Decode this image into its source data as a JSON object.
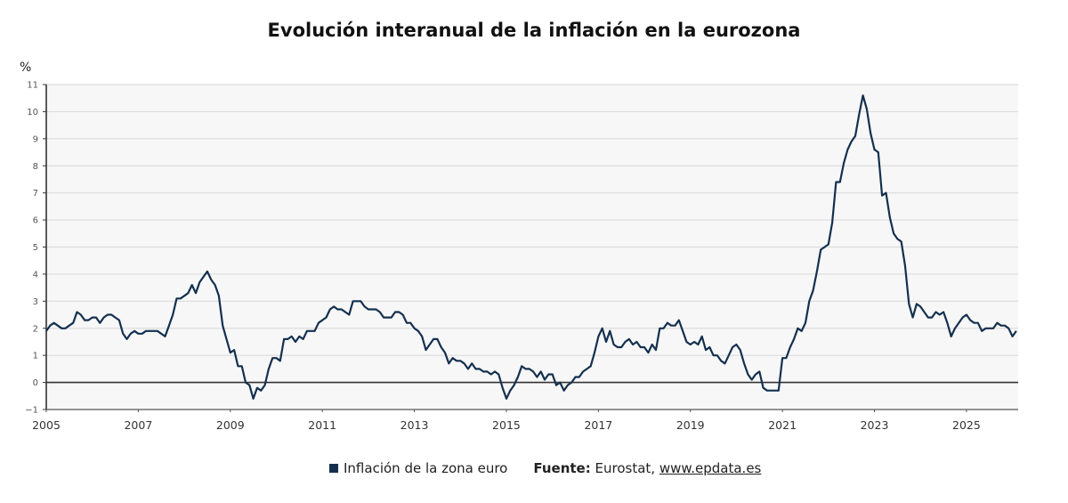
{
  "chart_data": {
    "type": "line",
    "title": "Evolución interanual de la inflación en la eurozona",
    "ylabel": "%",
    "xlabel": "",
    "ylim": [
      -1,
      11
    ],
    "yticks": [
      -1,
      0,
      1,
      2,
      3,
      4,
      5,
      6,
      7,
      8,
      9,
      10,
      11
    ],
    "xticks": [
      "2005",
      "2007",
      "2009",
      "2011",
      "2013",
      "2015",
      "2017",
      "2019",
      "2021",
      "2023",
      "2025"
    ],
    "x_start": "2005-01",
    "frequency": "monthly",
    "grid": true,
    "legend_position": "bottom-center",
    "series": [
      {
        "name": "Inflación de la zona euro",
        "color": "#14304f",
        "values": [
          1.9,
          2.1,
          2.2,
          2.1,
          2.0,
          2.0,
          2.1,
          2.2,
          2.6,
          2.5,
          2.3,
          2.3,
          2.4,
          2.4,
          2.2,
          2.4,
          2.5,
          2.5,
          2.4,
          2.3,
          1.8,
          1.6,
          1.8,
          1.9,
          1.8,
          1.8,
          1.9,
          1.9,
          1.9,
          1.9,
          1.8,
          1.7,
          2.1,
          2.5,
          3.1,
          3.1,
          3.2,
          3.3,
          3.6,
          3.3,
          3.7,
          3.9,
          4.1,
          3.8,
          3.6,
          3.2,
          2.1,
          1.6,
          1.1,
          1.2,
          0.6,
          0.6,
          0.0,
          -0.1,
          -0.6,
          -0.2,
          -0.3,
          -0.1,
          0.5,
          0.9,
          0.9,
          0.8,
          1.6,
          1.6,
          1.7,
          1.5,
          1.7,
          1.6,
          1.9,
          1.9,
          1.9,
          2.2,
          2.3,
          2.4,
          2.7,
          2.8,
          2.7,
          2.7,
          2.6,
          2.5,
          3.0,
          3.0,
          3.0,
          2.8,
          2.7,
          2.7,
          2.7,
          2.6,
          2.4,
          2.4,
          2.4,
          2.6,
          2.6,
          2.5,
          2.2,
          2.2,
          2.0,
          1.9,
          1.7,
          1.2,
          1.4,
          1.6,
          1.6,
          1.3,
          1.1,
          0.7,
          0.9,
          0.8,
          0.8,
          0.7,
          0.5,
          0.7,
          0.5,
          0.5,
          0.4,
          0.4,
          0.3,
          0.4,
          0.3,
          -0.2,
          -0.6,
          -0.3,
          -0.1,
          0.2,
          0.6,
          0.5,
          0.5,
          0.4,
          0.2,
          0.4,
          0.1,
          0.3,
          0.3,
          -0.1,
          0.0,
          -0.3,
          -0.1,
          0.0,
          0.2,
          0.2,
          0.4,
          0.5,
          0.6,
          1.1,
          1.7,
          2.0,
          1.5,
          1.9,
          1.4,
          1.3,
          1.3,
          1.5,
          1.6,
          1.4,
          1.5,
          1.3,
          1.3,
          1.1,
          1.4,
          1.2,
          2.0,
          2.0,
          2.2,
          2.1,
          2.1,
          2.3,
          1.9,
          1.5,
          1.4,
          1.5,
          1.4,
          1.7,
          1.2,
          1.3,
          1.0,
          1.0,
          0.8,
          0.7,
          1.0,
          1.3,
          1.4,
          1.2,
          0.7,
          0.3,
          0.1,
          0.3,
          0.4,
          -0.2,
          -0.3,
          -0.3,
          -0.3,
          -0.3,
          0.9,
          0.9,
          1.3,
          1.6,
          2.0,
          1.9,
          2.2,
          3.0,
          3.4,
          4.1,
          4.9,
          5.0,
          5.1,
          5.9,
          7.4,
          7.4,
          8.1,
          8.6,
          8.9,
          9.1,
          9.9,
          10.6,
          10.1,
          9.2,
          8.6,
          8.5,
          6.9,
          7.0,
          6.1,
          5.5,
          5.3,
          5.2,
          4.3,
          2.9,
          2.4,
          2.9,
          2.8,
          2.6,
          2.4,
          2.4,
          2.6,
          2.5,
          2.6,
          2.2,
          1.7,
          2.0,
          2.2,
          2.4,
          2.5,
          2.3,
          2.2,
          2.2,
          1.9,
          2.0,
          2.0,
          2.0,
          2.2,
          2.1,
          2.1,
          2.0,
          1.7,
          1.9
        ]
      }
    ]
  },
  "legend": {
    "series_label": "Inflación de la zona euro",
    "source_label": "Fuente:",
    "source_text": " Eurostat, ",
    "source_link": "www.epdata.es"
  }
}
